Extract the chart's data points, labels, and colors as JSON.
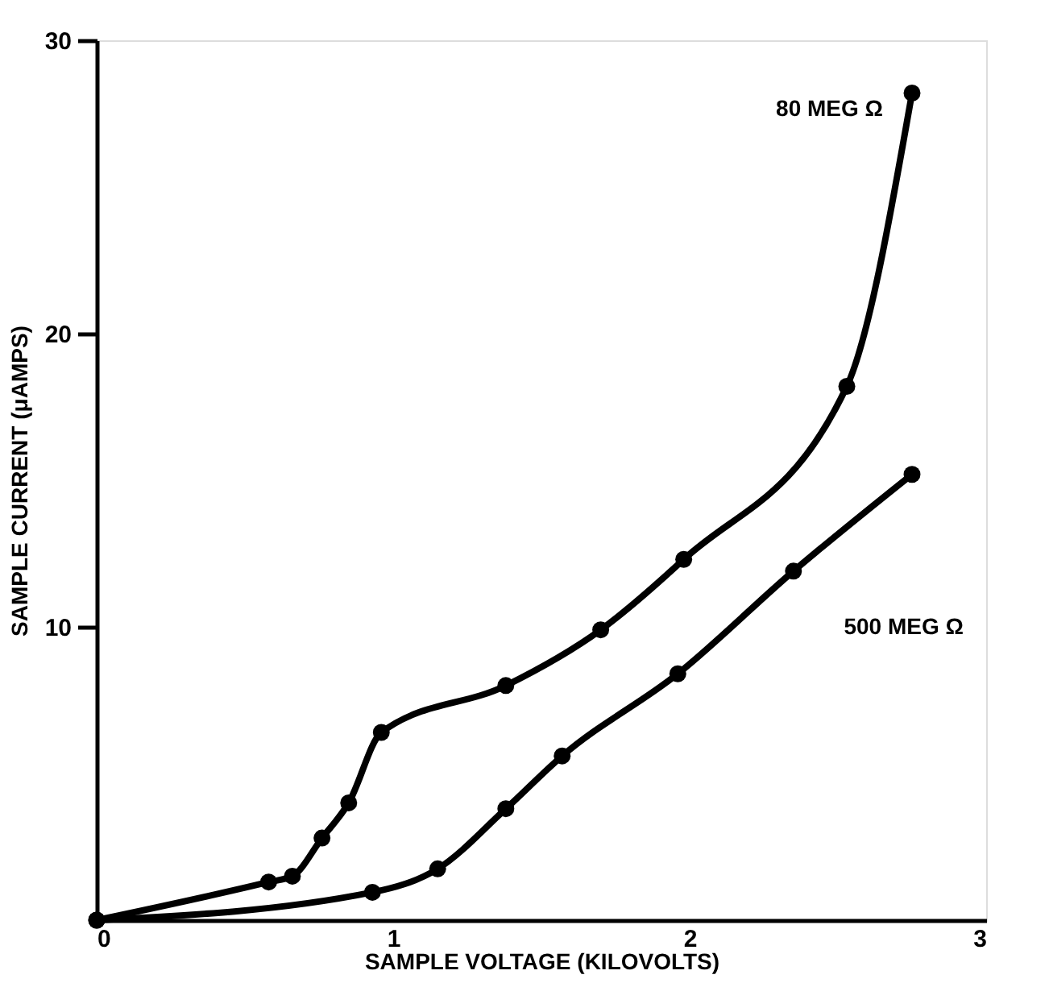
{
  "chart_data": {
    "type": "line",
    "xlabel": "SAMPLE VOLTAGE (KILOVOLTS)",
    "ylabel": "SAMPLE CURRENT (μAMPS)",
    "xlim": [
      0,
      3
    ],
    "xticks": [
      0,
      1,
      2,
      3
    ],
    "ylim": [
      0,
      30
    ],
    "yticks": [
      10,
      20,
      30
    ],
    "grid": false,
    "marker": "circle",
    "line_style": "solid",
    "series": [
      {
        "name": "80 MEG Ω",
        "color": "#000000",
        "x": [
          0,
          0.58,
          0.66,
          0.76,
          0.85,
          0.96,
          1.38,
          1.7,
          1.98,
          2.53,
          2.75
        ],
        "values": [
          0,
          1.3,
          1.5,
          2.8,
          4.0,
          6.4,
          8.0,
          9.9,
          12.3,
          18.2,
          28.2
        ]
      },
      {
        "name": "500 MEG Ω",
        "color": "#000000",
        "x": [
          0,
          0.93,
          1.15,
          1.38,
          1.57,
          1.96,
          2.35,
          2.75
        ],
        "values": [
          0,
          0.95,
          1.75,
          3.8,
          5.6,
          8.4,
          11.9,
          15.2
        ]
      }
    ]
  }
}
